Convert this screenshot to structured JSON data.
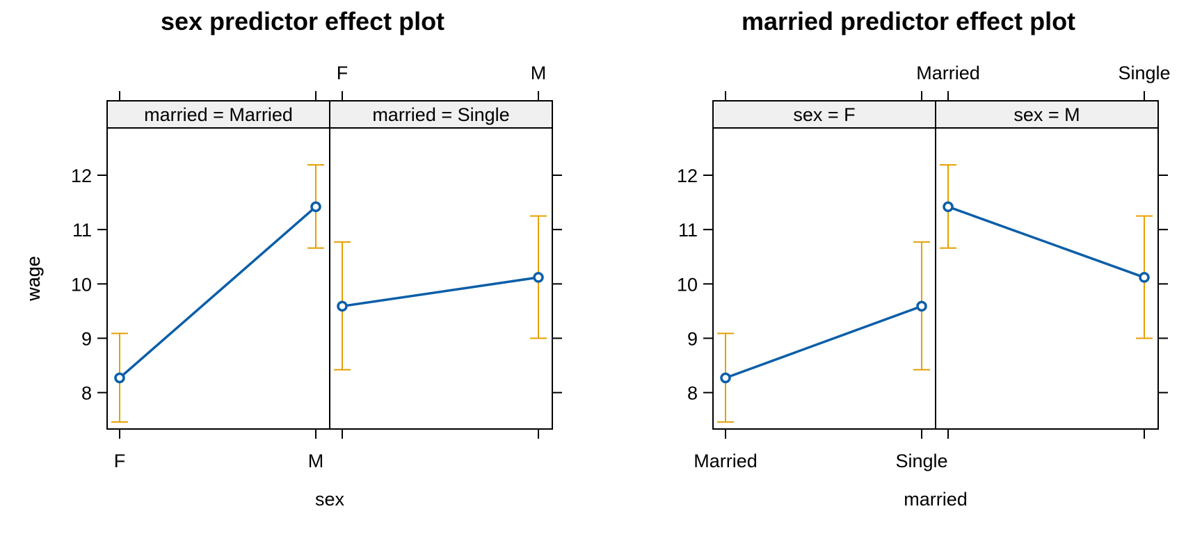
{
  "chart_data": [
    {
      "type": "line",
      "title": "sex predictor effect plot",
      "xlabel": "sex",
      "ylabel": "wage",
      "ylim": [
        7.33,
        12.87
      ],
      "yticks": [
        8,
        9,
        10,
        11,
        12
      ],
      "x_levels": [
        "F",
        "M"
      ],
      "panels": [
        {
          "strip": "married = Married",
          "fit": [
            8.27,
            11.42
          ],
          "lower": [
            7.46,
            10.66
          ],
          "upper": [
            9.09,
            12.19
          ]
        },
        {
          "strip": "married = Single",
          "fit": [
            9.59,
            10.12
          ],
          "lower": [
            8.42,
            9.0
          ],
          "upper": [
            10.77,
            11.25
          ]
        }
      ],
      "colors": {
        "fit": "#0a5ea8",
        "ci": "#e69f00",
        "strip": "#f0f0f0"
      }
    },
    {
      "type": "line",
      "title": "married predictor effect plot",
      "xlabel": "married",
      "ylabel": "wage",
      "ylim": [
        7.33,
        12.87
      ],
      "yticks": [
        8,
        9,
        10,
        11,
        12
      ],
      "x_levels": [
        "Married",
        "Single"
      ],
      "panels": [
        {
          "strip": "sex = F",
          "fit": [
            8.27,
            9.59
          ],
          "lower": [
            7.46,
            8.42
          ],
          "upper": [
            9.09,
            10.77
          ]
        },
        {
          "strip": "sex = M",
          "fit": [
            11.42,
            10.12
          ],
          "lower": [
            10.66,
            9.0
          ],
          "upper": [
            12.19,
            11.25
          ]
        }
      ],
      "colors": {
        "fit": "#0a5ea8",
        "ci": "#e69f00",
        "strip": "#f0f0f0"
      }
    }
  ]
}
